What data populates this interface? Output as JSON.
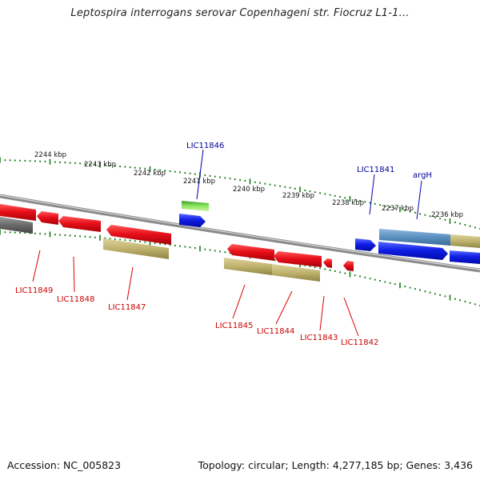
{
  "title": "Leptospira interrogans serovar Copenhageni str. Fiocruz L1-1...",
  "footer": {
    "accession": "Accession: NC_005823",
    "summary": "Topology: circular; Length: 4,277,185 bp; Genes: 3,436"
  },
  "colors": {
    "forward_gene": "#0a14e6",
    "reverse_gene": "#e6141e",
    "highlight_gene": "#5fd24b",
    "reverse_label": "#cc0000",
    "forward_label": "#000099",
    "backbone": "#888888",
    "tick": "#1a7a1a"
  },
  "kbp_labels": [
    "2244 kbp",
    "2243 kbp",
    "2242 kbp",
    "2241 kbp",
    "2240 kbp",
    "2239 kbp",
    "2238 kbp",
    "2237 kbp",
    "2236 kbp"
  ],
  "forward_gene_labels": [
    "LIC11846",
    "LIC11841",
    "argH"
  ],
  "reverse_gene_labels": [
    "LIC11849",
    "LIC11848",
    "LIC11847",
    "LIC11845",
    "LIC11844",
    "LIC11843",
    "LIC11842"
  ]
}
